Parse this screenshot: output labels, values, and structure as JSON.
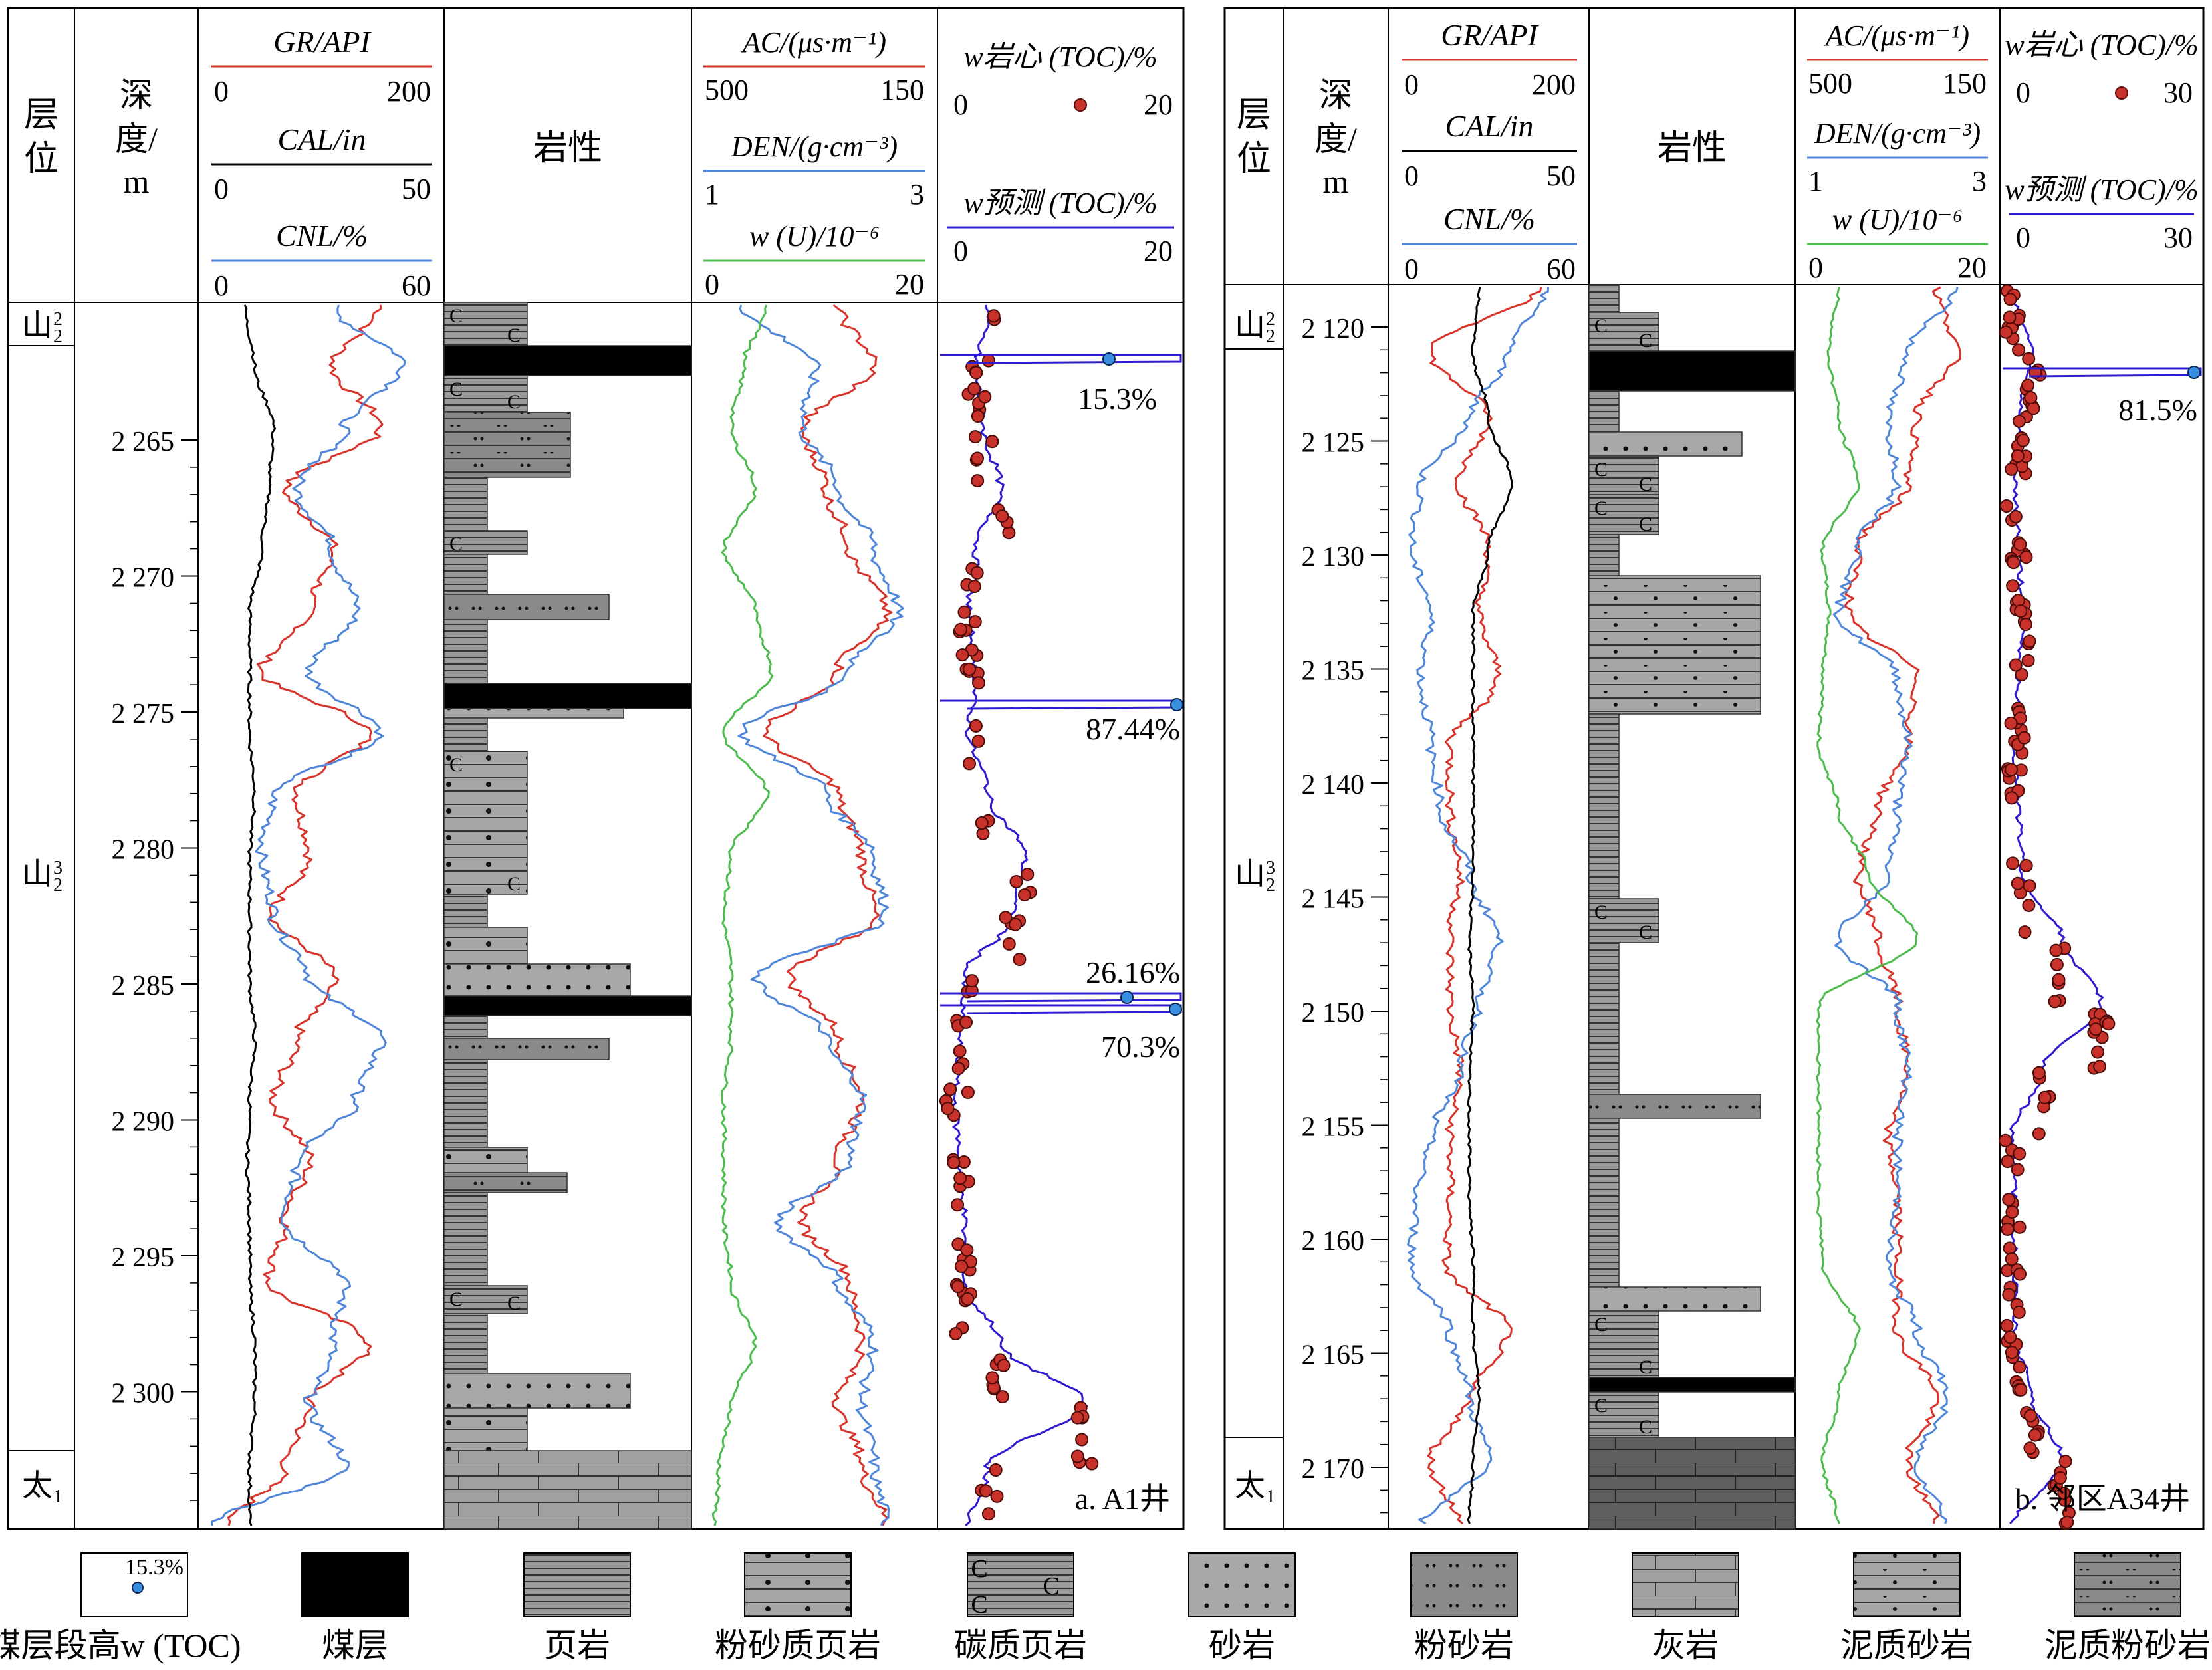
{
  "panels": [
    {
      "label": "a. A1井",
      "headers": {
        "layer": "层位",
        "depth": "深度/m",
        "gr": "GR/API",
        "gr_min": "0",
        "gr_max": "200",
        "cal": "CAL/in",
        "cal_min": "0",
        "cal_max": "50",
        "cnl": "CNL/%",
        "cnl_min": "0",
        "cnl_max": "60",
        "litho": "岩性",
        "ac": "AC/(μs·m⁻¹)",
        "ac_min": "500",
        "ac_max": "150",
        "den": "DEN/(g·cm⁻³)",
        "den_min": "1",
        "den_max": "3",
        "u": "w (U)/10⁻⁶",
        "u_min": "0",
        "u_max": "20",
        "toc_core": "w岩心 (TOC)/%",
        "toc_core_min": "0",
        "toc_core_max": "20",
        "toc_pred": "w预测 (TOC)/%",
        "toc_pred_min": "0",
        "toc_pred_max": "20"
      },
      "depth_ticks": [
        "2 265",
        "2 270",
        "2 275",
        "2 280",
        "2 285",
        "2 290",
        "2 295",
        "2 300"
      ],
      "layers": [
        "山₂²",
        "山₂³",
        "太₁"
      ],
      "annotations": [
        "15.3%",
        "87.44%",
        "26.16%",
        "70.3%"
      ]
    },
    {
      "label": "b. 邻区A34井",
      "headers": {
        "layer": "层位",
        "depth": "深度/m",
        "gr": "GR/API",
        "gr_min": "0",
        "gr_max": "200",
        "cal": "CAL/in",
        "cal_min": "0",
        "cal_max": "50",
        "cnl": "CNL/%",
        "cnl_min": "0",
        "cnl_max": "60",
        "litho": "岩性",
        "ac": "AC/(μs·m⁻¹)",
        "ac_min": "500",
        "ac_max": "150",
        "den": "DEN/(g·cm⁻³)",
        "den_min": "1",
        "den_max": "3",
        "u": "w (U)/10⁻⁶",
        "u_min": "0",
        "u_max": "20",
        "toc_core": "w岩心 (TOC)/%",
        "toc_core_min": "0",
        "toc_core_max": "30",
        "toc_pred": "w预测 (TOC)/%",
        "toc_pred_min": "0",
        "toc_pred_max": "30"
      },
      "depth_ticks": [
        "2 120",
        "2 125",
        "2 130",
        "2 135",
        "2 140",
        "2 145",
        "2 150",
        "2 155",
        "2 160",
        "2 165",
        "2 170"
      ],
      "layers": [
        "山₂²",
        "山₂³",
        "太₁"
      ],
      "annotations": [
        "81.5%"
      ]
    }
  ],
  "legend": [
    {
      "label": "煤层段高w (TOC)",
      "sample": "15.3%"
    },
    {
      "label": "煤层"
    },
    {
      "label": "页岩"
    },
    {
      "label": "粉砂质页岩"
    },
    {
      "label": "碳质页岩"
    },
    {
      "label": "砂岩"
    },
    {
      "label": "粉砂岩"
    },
    {
      "label": "灰岩"
    },
    {
      "label": "泥质砂岩"
    },
    {
      "label": "泥质粉砂岩"
    }
  ],
  "colors": {
    "gr": "#d9342b",
    "cal": "#000000",
    "cnl": "#4f86d9",
    "ac": "#d9342b",
    "den": "#4f86d9",
    "u": "#4dbb4d",
    "toc_pred": "#2f1bd0",
    "toc_core": "#c8322a",
    "coal_toc": "#3a8ee0",
    "litho_grey": "#a5a5a5",
    "litho_dark": "#6b6b6b"
  }
}
